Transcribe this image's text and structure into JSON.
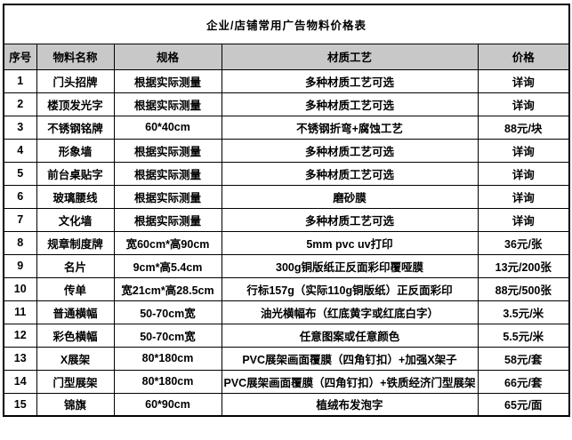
{
  "title": "企业/店铺常用广告物料价格表",
  "columns": [
    "序号",
    "物料名称",
    "规格",
    "材质工艺",
    "价格"
  ],
  "rows": [
    {
      "no": "1",
      "name": "门头招牌",
      "spec": "根据实际测量",
      "process": "多种材质工艺可选",
      "price": "详询"
    },
    {
      "no": "2",
      "name": "楼顶发光字",
      "spec": "根据实际测量",
      "process": "多种材质工艺可选",
      "price": "详询"
    },
    {
      "no": "3",
      "name": "不锈钢铭牌",
      "spec": "60*40cm",
      "process": "不锈钢折弯+腐蚀工艺",
      "price": "88元/块"
    },
    {
      "no": "4",
      "name": "形象墙",
      "spec": "根据实际测量",
      "process": "多种材质工艺可选",
      "price": "详询"
    },
    {
      "no": "5",
      "name": "前台桌贴字",
      "spec": "根据实际测量",
      "process": "多种材质工艺可选",
      "price": "详询"
    },
    {
      "no": "6",
      "name": "玻璃腰线",
      "spec": "根据实际测量",
      "process": "磨砂膜",
      "price": "详询"
    },
    {
      "no": "7",
      "name": "文化墙",
      "spec": "根据实际测量",
      "process": "多种材质工艺可选",
      "price": "详询"
    },
    {
      "no": "8",
      "name": "规章制度牌",
      "spec": "宽60cm*高90cm",
      "process": "5mm pvc uv打印",
      "price": "36元/张"
    },
    {
      "no": "9",
      "name": "名片",
      "spec": "9cm*高5.4cm",
      "process": "300g铜版纸正反面彩印覆哑膜",
      "price": "13元/200张"
    },
    {
      "no": "10",
      "name": "传单",
      "spec": "宽21cm*高28.5cm",
      "process": "行标157g（实际110g铜版纸）正反面彩印",
      "price": "88元/500张"
    },
    {
      "no": "11",
      "name": "普通横幅",
      "spec": "50-70cm宽",
      "process": "油光横幅布（红底黄字或红底白字）",
      "price": "3.5元/米"
    },
    {
      "no": "12",
      "name": "彩色横幅",
      "spec": "50-70cm宽",
      "process": "任意图案或任意颜色",
      "price": "5.5元/米"
    },
    {
      "no": "13",
      "name": "X展架",
      "spec": "80*180cm",
      "process": "PVC展架画面覆膜（四角钉扣）+加强X架子",
      "price": "58元/套"
    },
    {
      "no": "14",
      "name": "门型展架",
      "spec": "80*180cm",
      "process": "PVC展架画面覆膜（四角钉扣）+铁质经济门型展架",
      "price": "66元/套"
    },
    {
      "no": "15",
      "name": "锦旗",
      "spec": "60*90cm",
      "process": "植绒布发泡字",
      "price": "65元/面"
    }
  ],
  "colors": {
    "header_bg": "#c8c8c8",
    "border": "#000000",
    "background": "#ffffff"
  }
}
